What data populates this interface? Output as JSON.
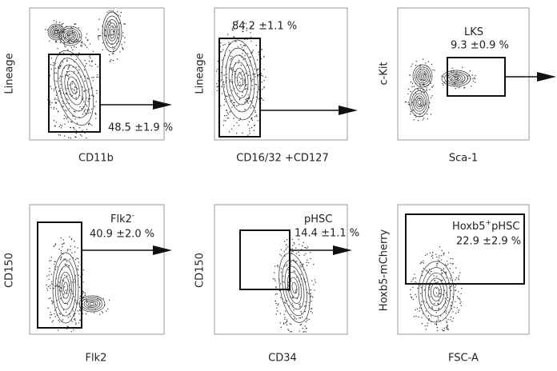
{
  "panels": [
    {
      "x_label": "CD11b",
      "y_label": "Lineage",
      "stat": "48.5 ±1.9 %"
    },
    {
      "x_label": "CD16/32 +CD127",
      "y_label": "Lineage",
      "stat": "84.2 ±1.1 %"
    },
    {
      "x_label": "Sca-1",
      "y_label": "c-Kit",
      "gate": {
        "text": "LKS"
      },
      "stat": "9.3 ±0.9 %"
    },
    {
      "x_label": "Flk2",
      "y_label": "CD150",
      "gate": {
        "text": "Flk2",
        "sup": "-"
      },
      "stat": "40.9 ±2.0 %"
    },
    {
      "x_label": "CD34",
      "y_label": "CD150",
      "gate": {
        "text": "pHSC"
      },
      "stat": "14.4 ±1.1 %"
    },
    {
      "x_label": "FSC-A",
      "y_label": "Hoxb5-mCherry",
      "gate": {
        "text": "Hoxb5",
        "sup": "+",
        "suffix": "pHSC"
      },
      "stat": "22.9 ±2.9 %"
    }
  ]
}
